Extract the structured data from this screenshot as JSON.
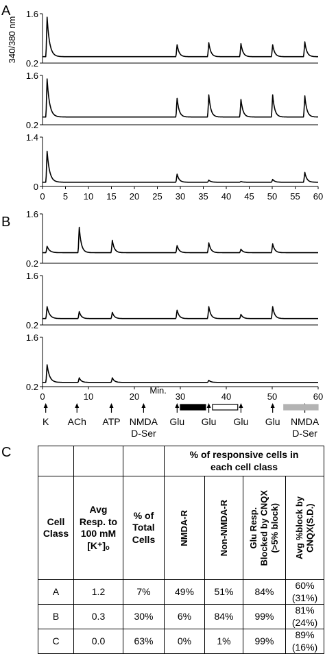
{
  "panel_labels": [
    "A",
    "B",
    "C"
  ],
  "chart_data": [
    {
      "type": "line",
      "panel": "A",
      "ylabel": "340/380 nm",
      "xlabel": "",
      "xlim": [
        0,
        60
      ],
      "ylim": [
        0.2,
        1.6
      ],
      "yticks": [
        "1.6",
        "0.2"
      ],
      "baseline": 0.38,
      "peaks": [
        {
          "x": 1.0,
          "y": 1.5
        },
        {
          "x": 29.3,
          "y": 0.72
        },
        {
          "x": 36.2,
          "y": 0.78
        },
        {
          "x": 43.2,
          "y": 0.75
        },
        {
          "x": 50.1,
          "y": 0.72
        },
        {
          "x": 57.1,
          "y": 0.8
        }
      ]
    },
    {
      "type": "line",
      "panel": "A",
      "xlim": [
        0,
        60
      ],
      "ylim": [
        0.2,
        1.6
      ],
      "yticks": [
        "1.6",
        "0.2"
      ],
      "baseline": 0.42,
      "peaks": [
        {
          "x": 1.0,
          "y": 1.5
        },
        {
          "x": 29.3,
          "y": 0.95
        },
        {
          "x": 36.2,
          "y": 1.05
        },
        {
          "x": 43.2,
          "y": 0.92
        },
        {
          "x": 50.1,
          "y": 1.05
        },
        {
          "x": 57.1,
          "y": 1.02
        }
      ]
    },
    {
      "type": "line",
      "panel": "A",
      "xlim": [
        0,
        60
      ],
      "ylim": [
        0,
        1.4
      ],
      "yticks": [
        "1.4",
        "0"
      ],
      "xticks": [
        "0",
        "5",
        "10",
        "15",
        "20",
        "25",
        "30",
        "35",
        "40",
        "45",
        "50",
        "55",
        "60"
      ],
      "baseline": 0.12,
      "peaks": [
        {
          "x": 1.0,
          "y": 1.0
        },
        {
          "x": 29.3,
          "y": 0.35
        },
        {
          "x": 36.2,
          "y": 0.18
        },
        {
          "x": 43.2,
          "y": 0.14
        },
        {
          "x": 50.1,
          "y": 0.2
        },
        {
          "x": 57.1,
          "y": 0.4
        }
      ]
    },
    {
      "type": "line",
      "panel": "B",
      "xlim": [
        0,
        60
      ],
      "ylim": [
        0.2,
        1.6
      ],
      "yticks": [
        "1.6",
        "0.2"
      ],
      "baseline": 0.5,
      "peaks": [
        {
          "x": 1.0,
          "y": 0.68
        },
        {
          "x": 8.0,
          "y": 1.22
        },
        {
          "x": 15.2,
          "y": 0.85
        },
        {
          "x": 29.3,
          "y": 0.7
        },
        {
          "x": 36.2,
          "y": 0.78
        },
        {
          "x": 43.2,
          "y": 0.6
        },
        {
          "x": 50.1,
          "y": 0.75
        }
      ]
    },
    {
      "type": "line",
      "panel": "B",
      "xlim": [
        0,
        60
      ],
      "ylim": [
        0.2,
        1.6
      ],
      "yticks": [
        "1.6",
        "0.2"
      ],
      "baseline": 0.38,
      "peaks": [
        {
          "x": 1.0,
          "y": 0.72
        },
        {
          "x": 8.0,
          "y": 0.58
        },
        {
          "x": 15.2,
          "y": 0.56
        },
        {
          "x": 29.3,
          "y": 0.62
        },
        {
          "x": 36.2,
          "y": 0.72
        },
        {
          "x": 43.2,
          "y": 0.5
        },
        {
          "x": 50.1,
          "y": 0.72
        }
      ]
    },
    {
      "type": "line",
      "panel": "B",
      "xlim": [
        0,
        60
      ],
      "ylim": [
        0.2,
        1.6
      ],
      "yticks": [
        "1.6",
        "0.2"
      ],
      "xticks": [
        "0",
        "10",
        "20",
        "30",
        "40",
        "50",
        "60"
      ],
      "xlabel": "Min.",
      "baseline": 0.32,
      "peaks": [
        {
          "x": 1.0,
          "y": 0.82
        },
        {
          "x": 8.0,
          "y": 0.45
        },
        {
          "x": 15.2,
          "y": 0.45
        },
        {
          "x": 36.2,
          "y": 0.38
        }
      ]
    }
  ],
  "stimuli": [
    {
      "x": 0.7,
      "label": "K"
    },
    {
      "x": 7.5,
      "label": "ACh"
    },
    {
      "x": 15.0,
      "label": "ATP"
    },
    {
      "x": 22.0,
      "label": "NMDA\nD-Ser"
    },
    {
      "x": 29.3,
      "label": "Glu"
    },
    {
      "x": 36.2,
      "label": "Glu"
    },
    {
      "x": 43.2,
      "label": "Glu"
    },
    {
      "x": 50.1,
      "label": "Glu"
    },
    {
      "x": 57.1,
      "label": "NMDA\nD-Ser"
    }
  ],
  "drug_bars": [
    {
      "from": 30.0,
      "to": 35.5,
      "color": "#000000"
    },
    {
      "from": 37.0,
      "to": 42.5,
      "color": "#ffffff"
    },
    {
      "from": 52.5,
      "to": 60.0,
      "color": "#b3b3b3"
    }
  ],
  "table": {
    "group_header": "% of responsive cells in\neach cell class",
    "col_headers": [
      "Cell\nClass",
      "Avg\nResp. to\n100 mM\n[K⁺]ₒ",
      "% of\nTotal\nCells"
    ],
    "vertical_headers": [
      "NMDA-R",
      "Non-NMDA-R",
      "Glu Resp.\nBlocked by CNQX\n(>5% block)",
      "Avg %block by\nCNQX(S.D.)"
    ],
    "rows": [
      [
        "A",
        "1.2",
        "7%",
        "49%",
        "51%",
        "84%",
        "60%\n(31%)"
      ],
      [
        "B",
        "0.3",
        "30%",
        "6%",
        "84%",
        "99%",
        "81%\n(24%)"
      ],
      [
        "C",
        "0.0",
        "63%",
        "0%",
        "1%",
        "99%",
        "89%\n(16%)"
      ]
    ]
  }
}
